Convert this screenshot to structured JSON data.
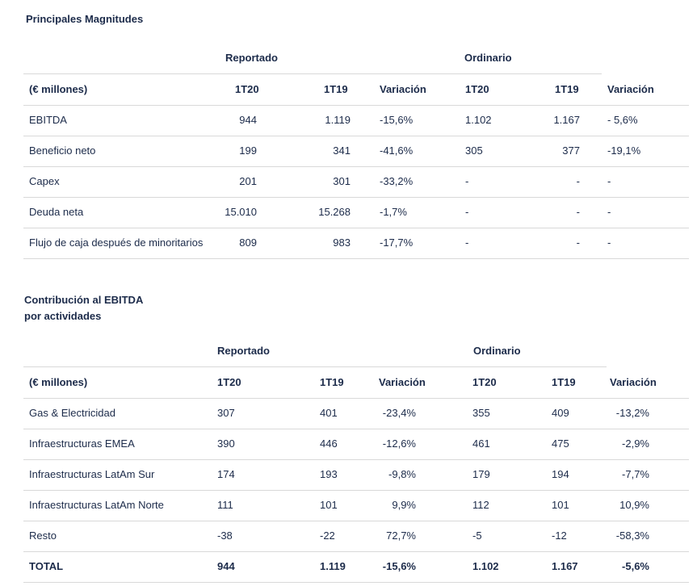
{
  "table1": {
    "title": "Principales Magnitudes",
    "group_reportado": "Reportado",
    "group_ordinario": "Ordinario",
    "headers": [
      "(€ millones)",
      "1T20",
      "1T19",
      "Variación",
      "1T20",
      "1T19",
      "Variación"
    ],
    "rows": [
      [
        "EBITDA",
        "944",
        "1.119",
        "-15,6%",
        "1.102",
        "1.167",
        "-  5,6%"
      ],
      [
        "Beneficio neto",
        "199",
        "341",
        "-41,6%",
        "305",
        "377",
        "-19,1%"
      ],
      [
        "Capex",
        "201",
        "301",
        "-33,2%",
        "-",
        "-",
        "-"
      ],
      [
        "Deuda neta",
        "15.010",
        "15.268",
        "-1,7%",
        "-",
        "-",
        "-"
      ],
      [
        "Flujo de caja después de minoritarios",
        "809",
        "983",
        "-17,7%",
        "-",
        "-",
        "-"
      ]
    ]
  },
  "table2": {
    "title_line1": "Contribución al EBITDA",
    "title_line2": "por actividades",
    "group_reportado": "Reportado",
    "group_ordinario": "Ordinario",
    "headers": [
      "(€ millones)",
      "1T20",
      "1T19",
      "Variación",
      "1T20",
      "1T19",
      "Variación"
    ],
    "rows": [
      [
        "Gas & Electricidad",
        "307",
        "401",
        "-23,4%",
        "355",
        "409",
        "-13,2%"
      ],
      [
        "Infraestructuras EMEA",
        "390",
        "446",
        "-12,6%",
        "461",
        "475",
        "-2,9%"
      ],
      [
        "Infraestructuras LatAm Sur",
        "174",
        "193",
        "-9,8%",
        "179",
        "194",
        "-7,7%"
      ],
      [
        "Infraestructuras LatAm Norte",
        "111",
        "101",
        "9,9%",
        "112",
        "101",
        "10,9%"
      ],
      [
        "Resto",
        "-38",
        "-22",
        "72,7%",
        "-5",
        "-12",
        "-58,3%"
      ],
      [
        "TOTAL",
        "944",
        "1.119",
        "-15,6%",
        "1.102",
        "1.167",
        "-5,6%"
      ]
    ]
  }
}
